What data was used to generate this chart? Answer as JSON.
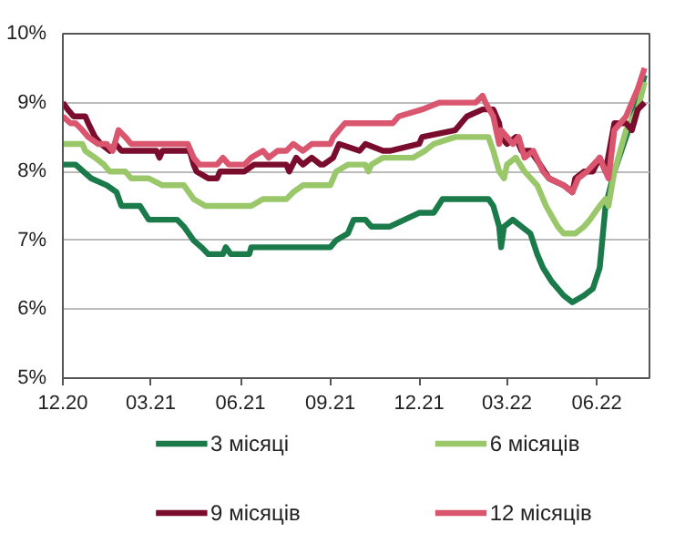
{
  "chart_data": {
    "type": "line",
    "xlim": [
      "2020-12-01",
      "2022-07-25"
    ],
    "xticks": [
      {
        "value": "2020-12-01",
        "label": "12.20"
      },
      {
        "value": "2021-03-01",
        "label": "03.21"
      },
      {
        "value": "2021-06-01",
        "label": "06.21"
      },
      {
        "value": "2021-09-01",
        "label": "09.21"
      },
      {
        "value": "2021-12-01",
        "label": "12.21"
      },
      {
        "value": "2022-03-01",
        "label": "03.22"
      },
      {
        "value": "2022-06-01",
        "label": "06.22"
      }
    ],
    "ylim": [
      5,
      10
    ],
    "yticks": [
      {
        "value": 5,
        "label": "5%"
      },
      {
        "value": 6,
        "label": "6%"
      },
      {
        "value": 7,
        "label": "7%"
      },
      {
        "value": 8,
        "label": "8%"
      },
      {
        "value": 9,
        "label": "9%"
      },
      {
        "value": 10,
        "label": "10%"
      }
    ],
    "grid": "y",
    "legend": "bottom",
    "line_style": "solid",
    "series": [
      {
        "name": "3 місяці",
        "color": "#1b7a4a",
        "x": [
          "2020-12-01",
          "2020-12-14",
          "2020-12-30",
          "2021-01-15",
          "2021-01-25",
          "2021-01-30",
          "2021-02-18",
          "2021-02-27",
          "2021-03-28",
          "2021-04-04",
          "2021-04-14",
          "2021-04-22",
          "2021-04-29",
          "2021-05-14",
          "2021-05-17",
          "2021-05-22",
          "2021-06-10",
          "2021-06-12",
          "2021-09-01",
          "2021-09-07",
          "2021-09-19",
          "2021-09-25",
          "2021-10-07",
          "2021-10-13",
          "2021-11-01",
          "2021-11-16",
          "2021-12-01",
          "2021-12-16",
          "2021-12-25",
          "2022-02-10",
          "2022-02-15",
          "2022-02-21",
          "2022-02-23",
          "2022-02-26",
          "2022-03-07",
          "2022-03-16",
          "2022-03-25",
          "2022-04-01",
          "2022-04-07",
          "2022-04-16",
          "2022-04-28",
          "2022-05-07",
          "2022-05-19",
          "2022-05-28",
          "2022-06-04",
          "2022-06-10",
          "2022-06-19",
          "2022-07-01",
          "2022-07-13",
          "2022-07-20"
        ],
        "values": [
          8.1,
          8.1,
          7.9,
          7.8,
          7.7,
          7.5,
          7.5,
          7.3,
          7.3,
          7.2,
          7.0,
          6.9,
          6.8,
          6.8,
          6.9,
          6.8,
          6.8,
          6.9,
          6.9,
          7.0,
          7.1,
          7.3,
          7.3,
          7.2,
          7.2,
          7.3,
          7.4,
          7.4,
          7.6,
          7.6,
          7.5,
          7.2,
          6.9,
          7.2,
          7.3,
          7.2,
          7.1,
          6.8,
          6.6,
          6.4,
          6.2,
          6.1,
          6.2,
          6.3,
          6.6,
          7.5,
          8.0,
          8.5,
          9.0,
          9.4
        ]
      },
      {
        "name": "6 місяців",
        "color": "#99c76a",
        "x": [
          "2020-12-01",
          "2020-12-21",
          "2020-12-24",
          "2021-01-03",
          "2021-01-12",
          "2021-01-18",
          "2021-02-03",
          "2021-02-09",
          "2021-02-27",
          "2021-03-13",
          "2021-04-04",
          "2021-04-14",
          "2021-04-26",
          "2021-05-14",
          "2021-06-12",
          "2021-06-24",
          "2021-07-18",
          "2021-07-25",
          "2021-08-04",
          "2021-09-01",
          "2021-09-07",
          "2021-09-19",
          "2021-10-07",
          "2021-10-10",
          "2021-10-13",
          "2021-10-25",
          "2021-11-25",
          "2021-12-07",
          "2021-12-16",
          "2022-01-07",
          "2022-02-10",
          "2022-02-15",
          "2022-02-21",
          "2022-02-26",
          "2022-03-01",
          "2022-03-10",
          "2022-03-19",
          "2022-04-01",
          "2022-04-10",
          "2022-04-22",
          "2022-04-28",
          "2022-05-10",
          "2022-05-19",
          "2022-05-25",
          "2022-06-04",
          "2022-06-10",
          "2022-06-13",
          "2022-06-19",
          "2022-07-01",
          "2022-07-13",
          "2022-07-20"
        ],
        "values": [
          8.4,
          8.4,
          8.3,
          8.2,
          8.1,
          8.0,
          8.0,
          7.9,
          7.9,
          7.8,
          7.8,
          7.6,
          7.5,
          7.5,
          7.5,
          7.6,
          7.6,
          7.7,
          7.8,
          7.8,
          8.0,
          8.1,
          8.1,
          8.0,
          8.1,
          8.2,
          8.2,
          8.3,
          8.4,
          8.5,
          8.5,
          8.3,
          8.0,
          7.9,
          8.1,
          8.2,
          8.0,
          7.8,
          7.5,
          7.2,
          7.1,
          7.1,
          7.2,
          7.3,
          7.5,
          7.6,
          7.5,
          8.0,
          8.6,
          8.9,
          9.3
        ]
      },
      {
        "name": "9 місяців",
        "color": "#7a0d2e",
        "x": [
          "2020-12-01",
          "2020-12-06",
          "2020-12-12",
          "2020-12-24",
          "2020-12-27",
          "2021-01-03",
          "2021-01-09",
          "2021-01-18",
          "2021-01-24",
          "2021-01-30",
          "2021-03-07",
          "2021-03-10",
          "2021-03-13",
          "2021-04-10",
          "2021-04-14",
          "2021-04-17",
          "2021-04-29",
          "2021-05-08",
          "2021-05-11",
          "2021-06-05",
          "2021-06-15",
          "2021-07-18",
          "2021-07-21",
          "2021-07-28",
          "2021-08-04",
          "2021-08-13",
          "2021-08-22",
          "2021-08-25",
          "2021-09-04",
          "2021-09-10",
          "2021-10-01",
          "2021-10-07",
          "2021-10-25",
          "2021-11-01",
          "2021-12-01",
          "2021-12-04",
          "2022-01-07",
          "2022-01-13",
          "2022-01-19",
          "2022-02-04",
          "2022-02-15",
          "2022-02-21",
          "2022-02-23",
          "2022-03-01",
          "2022-03-10",
          "2022-03-16",
          "2022-03-25",
          "2022-04-04",
          "2022-04-13",
          "2022-04-28",
          "2022-05-07",
          "2022-05-10",
          "2022-05-19",
          "2022-05-28",
          "2022-06-04",
          "2022-06-10",
          "2022-06-19",
          "2022-07-01",
          "2022-07-07",
          "2022-07-13",
          "2022-07-20"
        ],
        "values": [
          9.0,
          8.9,
          8.8,
          8.8,
          8.7,
          8.5,
          8.4,
          8.3,
          8.4,
          8.3,
          8.3,
          8.2,
          8.3,
          8.3,
          8.1,
          8.0,
          7.9,
          7.9,
          8.0,
          8.0,
          8.1,
          8.1,
          8.0,
          8.2,
          8.1,
          8.2,
          8.1,
          8.1,
          8.2,
          8.4,
          8.3,
          8.4,
          8.3,
          8.3,
          8.4,
          8.5,
          8.6,
          8.7,
          8.8,
          8.9,
          8.9,
          8.7,
          8.5,
          8.4,
          8.5,
          8.3,
          8.3,
          8.1,
          7.9,
          7.8,
          7.7,
          7.9,
          8.0,
          8.0,
          8.2,
          8.0,
          8.7,
          8.7,
          8.6,
          8.9,
          9.0
        ]
      },
      {
        "name": "12 місяців",
        "color": "#d9566e",
        "x": [
          "2020-12-01",
          "2020-12-09",
          "2020-12-14",
          "2020-12-21",
          "2020-12-27",
          "2021-01-06",
          "2021-01-15",
          "2021-01-21",
          "2021-01-27",
          "2021-02-03",
          "2021-02-09",
          "2021-04-08",
          "2021-04-14",
          "2021-04-20",
          "2021-05-08",
          "2021-05-14",
          "2021-05-20",
          "2021-06-05",
          "2021-06-12",
          "2021-06-24",
          "2021-06-30",
          "2021-07-09",
          "2021-07-18",
          "2021-07-25",
          "2021-08-04",
          "2021-08-13",
          "2021-09-01",
          "2021-09-04",
          "2021-09-16",
          "2021-11-04",
          "2021-11-10",
          "2021-12-04",
          "2021-12-22",
          "2022-01-28",
          "2022-02-04",
          "2022-02-07",
          "2022-02-15",
          "2022-02-21",
          "2022-02-23",
          "2022-03-01",
          "2022-03-07",
          "2022-03-13",
          "2022-03-19",
          "2022-03-28",
          "2022-04-07",
          "2022-04-13",
          "2022-04-28",
          "2022-05-07",
          "2022-05-13",
          "2022-05-22",
          "2022-06-04",
          "2022-06-13",
          "2022-06-19",
          "2022-07-01",
          "2022-07-13",
          "2022-07-20"
        ],
        "values": [
          8.8,
          8.7,
          8.7,
          8.6,
          8.5,
          8.4,
          8.4,
          8.3,
          8.6,
          8.5,
          8.4,
          8.4,
          8.2,
          8.1,
          8.1,
          8.2,
          8.1,
          8.1,
          8.2,
          8.3,
          8.2,
          8.3,
          8.3,
          8.4,
          8.3,
          8.4,
          8.4,
          8.5,
          8.7,
          8.7,
          8.8,
          8.9,
          9.0,
          9.0,
          9.1,
          9.0,
          8.8,
          8.4,
          8.6,
          8.5,
          8.4,
          8.5,
          8.2,
          8.3,
          8.0,
          7.9,
          7.8,
          7.7,
          7.9,
          8.0,
          8.2,
          7.9,
          8.6,
          8.8,
          9.2,
          9.5
        ]
      }
    ]
  }
}
